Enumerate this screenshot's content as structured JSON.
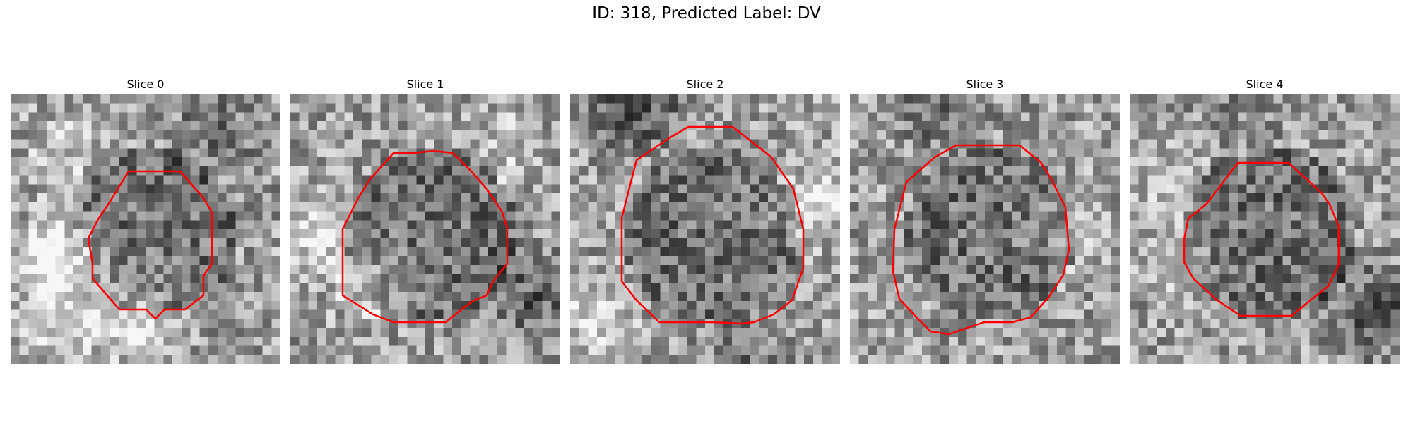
{
  "figure": {
    "title": "ID: 318, Predicted Label: DV"
  },
  "colors": {
    "outline": "#ff0000",
    "background": "#ffffff"
  },
  "slices": [
    {
      "label": "Slice 0",
      "seed": 11,
      "bias": [
        [
          0.2,
          0.6,
          0.4
        ],
        [
          0.2,
          0.2,
          0.15
        ],
        [
          0.75,
          0.15,
          -0.2
        ],
        [
          0.45,
          0.85,
          0.3
        ],
        [
          0.15,
          0.85,
          0.2
        ]
      ]
    },
    {
      "label": "Slice 1",
      "seed": 23,
      "bias": [
        [
          0.1,
          0.5,
          0.25
        ],
        [
          0.9,
          0.75,
          -0.25
        ],
        [
          0.8,
          0.2,
          0.15
        ],
        [
          0.3,
          0.7,
          0.2
        ]
      ]
    },
    {
      "label": "Slice 2",
      "seed": 37,
      "bias": [
        [
          0.25,
          0.05,
          -0.35
        ],
        [
          0.1,
          0.85,
          0.25
        ],
        [
          0.9,
          0.4,
          0.25
        ],
        [
          0.65,
          0.95,
          -0.2
        ]
      ]
    },
    {
      "label": "Slice 3",
      "seed": 41,
      "bias": [
        [
          0.35,
          0.05,
          -0.25
        ],
        [
          0.8,
          0.5,
          0.15
        ],
        [
          0.2,
          0.4,
          0.0
        ]
      ]
    },
    {
      "label": "Slice 4",
      "seed": 53,
      "bias": [
        [
          0.9,
          0.8,
          -0.3
        ],
        [
          0.2,
          0.6,
          0.15
        ],
        [
          0.4,
          0.1,
          -0.1
        ],
        [
          0.15,
          0.3,
          0.15
        ]
      ]
    }
  ]
}
